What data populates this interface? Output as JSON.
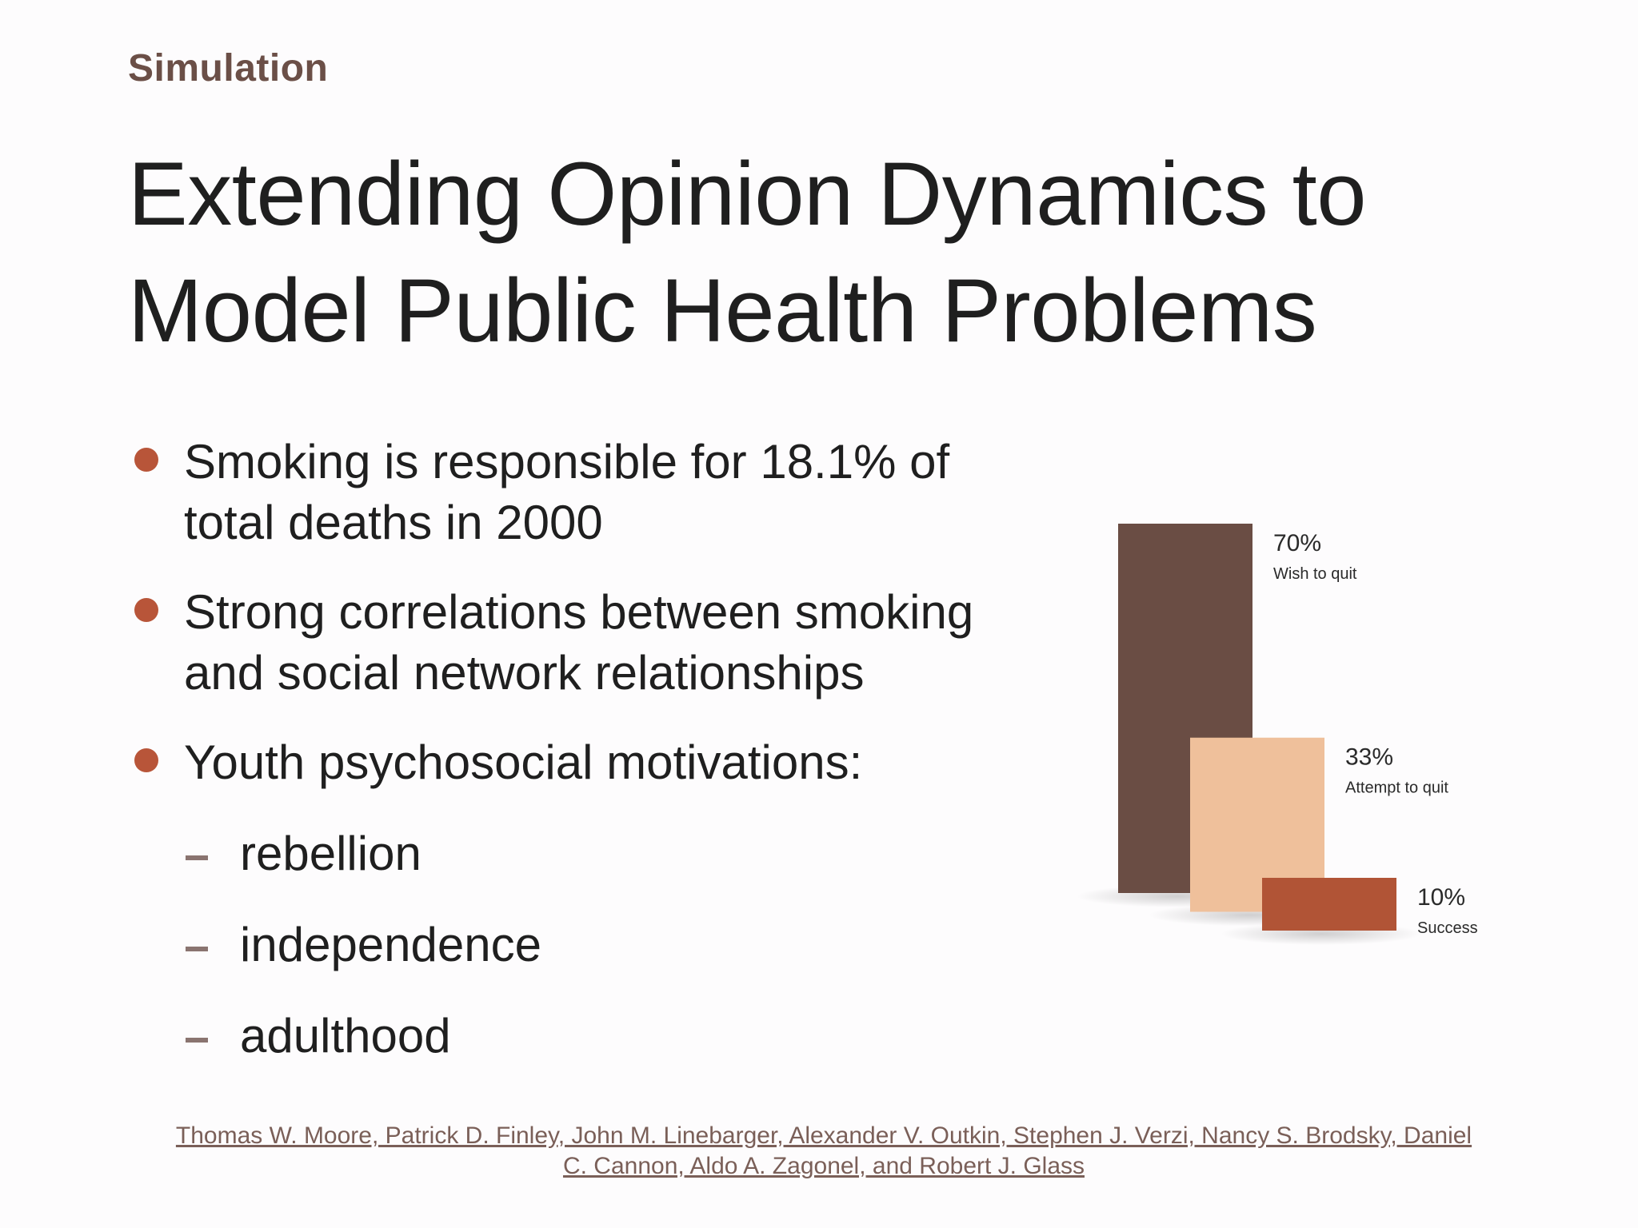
{
  "header": {
    "eyebrow": "Simulation",
    "title_lines": [
      "Extending Opinion Dynamics to",
      "Model Public Health Problems"
    ]
  },
  "bullets": [
    {
      "lines": [
        "Smoking is responsible for 18.1% of",
        "total deaths in 2000"
      ]
    },
    {
      "lines": [
        "Strong correlations between smoking",
        "and social network relationships"
      ]
    },
    {
      "lines": [
        "Youth psychosocial motivations:"
      ]
    }
  ],
  "sub_bullets": [
    "rebellion",
    "independence",
    "adulthood"
  ],
  "citation_lines": [
    "Thomas W. Moore, Patrick D. Finley, John M. Linebarger, Alexander V. Outkin, Stephen J. Verzi, Nancy S. Brodsky, Daniel",
    "C. Cannon, Aldo A. Zagonel, and Robert J. Glass"
  ],
  "colors": {
    "accent": "#b85539",
    "eyebrow": "#6b4f47",
    "bar_dark": "#6a4d44",
    "bar_light": "#efc09b",
    "bar_rust": "#b15436"
  },
  "chart_data": {
    "type": "bar",
    "categories": [
      "Wish to quit",
      "Attempt to quit",
      "Success"
    ],
    "values": [
      70,
      33,
      10
    ],
    "value_labels": [
      "70%",
      "33%",
      "10%"
    ],
    "colors": [
      "#6a4d44",
      "#efc09b",
      "#b15436"
    ],
    "ylim": [
      0,
      70
    ],
    "grid": false,
    "title": "",
    "xlabel": "",
    "ylabel": ""
  }
}
